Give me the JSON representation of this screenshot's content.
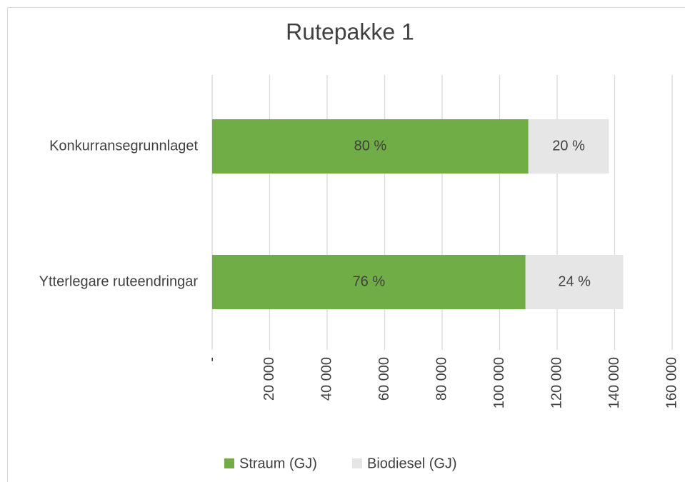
{
  "chart_data": {
    "type": "stacked_barh",
    "title": "Rutepakke 1",
    "categories": [
      "Konkurransegrunnlaget",
      "Ytterlegare ruteendringar"
    ],
    "series": [
      {
        "name": "Straum (GJ)",
        "color": "#70ad47",
        "values": [
          110000,
          109000
        ],
        "share_labels": [
          "80 %",
          "76 %"
        ]
      },
      {
        "name": "Biodiesel (GJ)",
        "color": "#e7e6e6",
        "values": [
          28000,
          34000
        ],
        "share_labels": [
          "20 %",
          "24 %"
        ]
      }
    ],
    "xlim": [
      0,
      160000
    ],
    "xticks": [
      {
        "value": 0,
        "label": "-"
      },
      {
        "value": 20000,
        "label": "20 000"
      },
      {
        "value": 40000,
        "label": "40 000"
      },
      {
        "value": 60000,
        "label": "60 000"
      },
      {
        "value": 80000,
        "label": "80 000"
      },
      {
        "value": 100000,
        "label": "100 000"
      },
      {
        "value": 120000,
        "label": "120 000"
      },
      {
        "value": 140000,
        "label": "140 000"
      },
      {
        "value": 160000,
        "label": "160 000"
      }
    ],
    "grid": true,
    "legend": "bottom"
  }
}
